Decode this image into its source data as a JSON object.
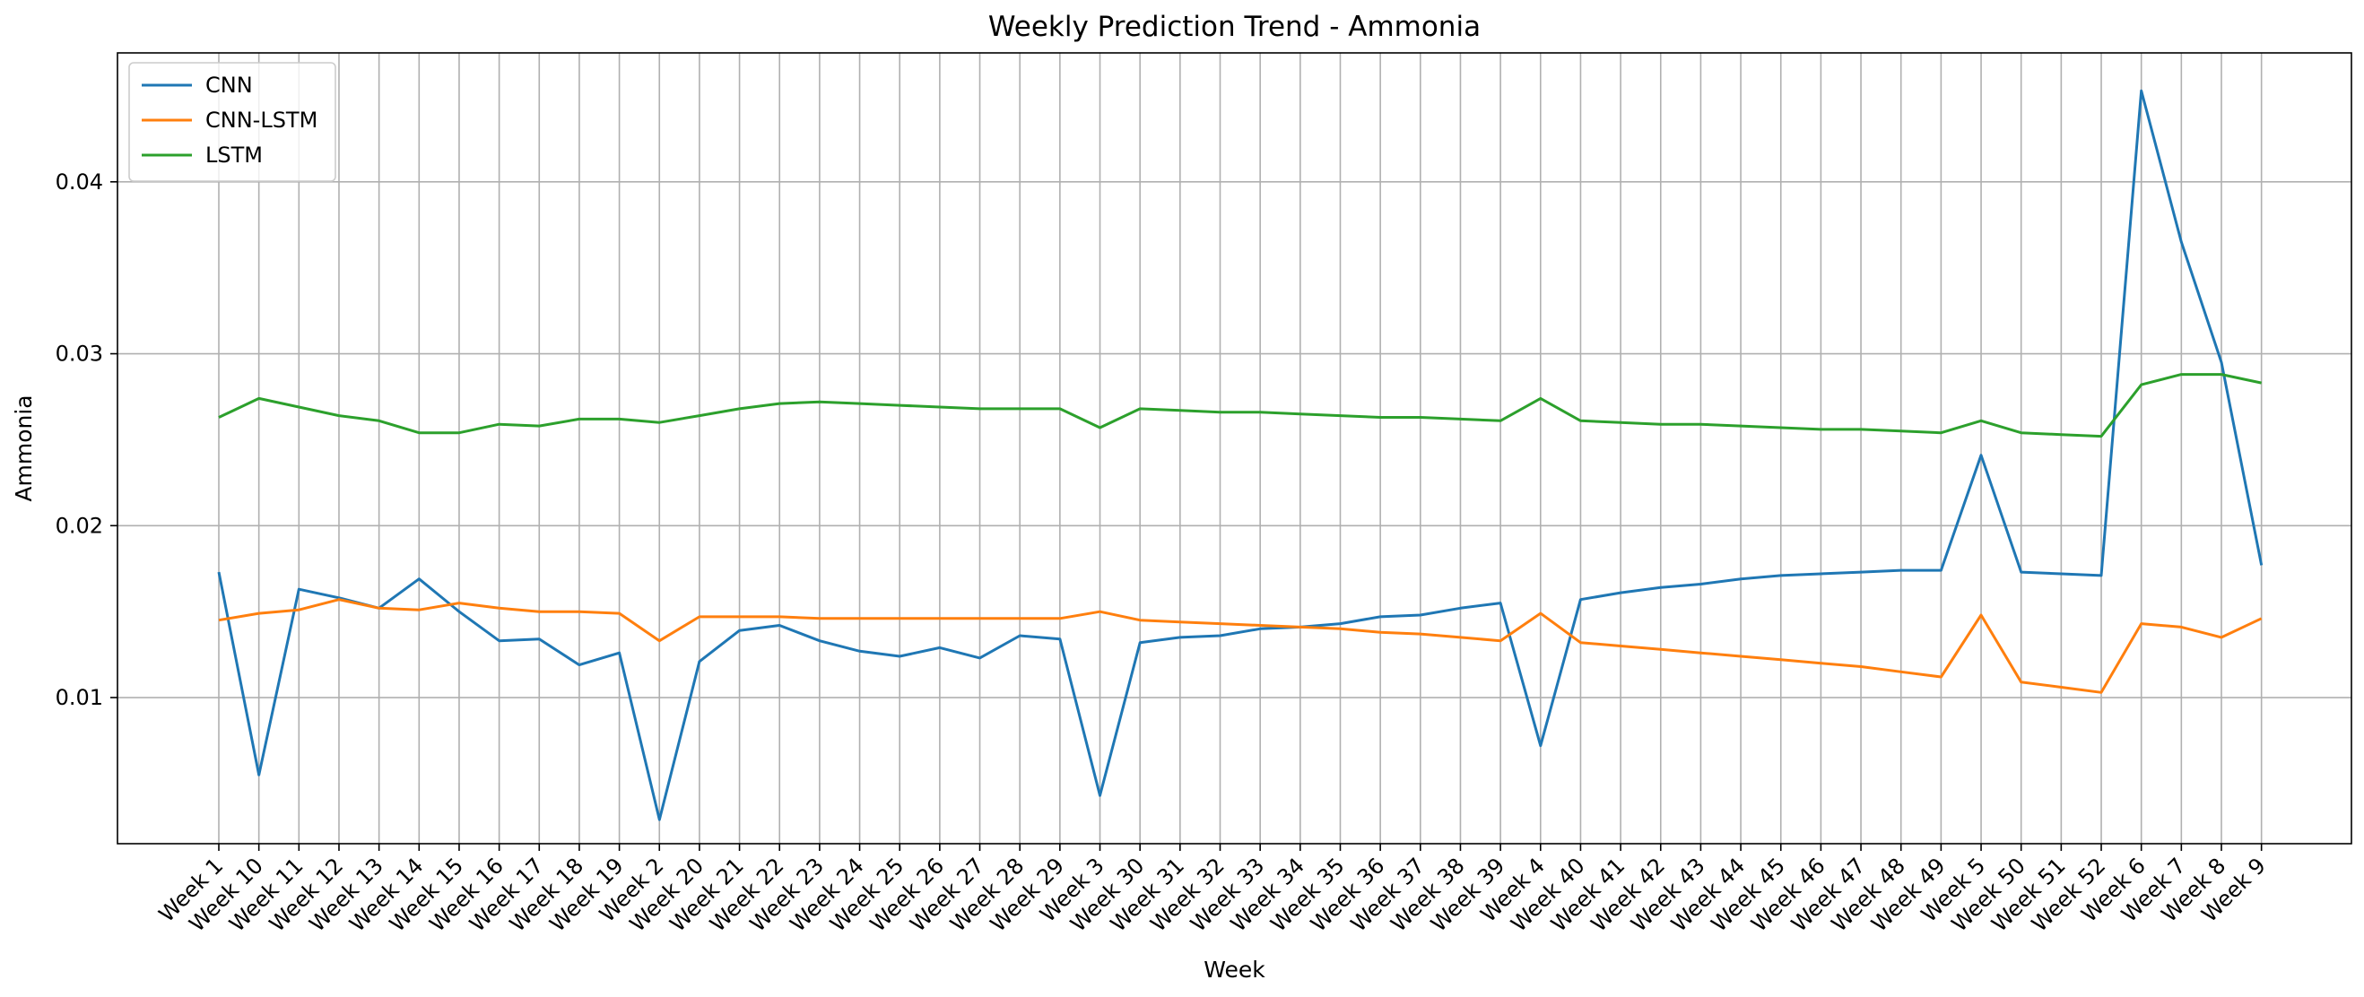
{
  "chart_data": {
    "type": "line",
    "title": "Weekly Prediction Trend - Ammonia",
    "xlabel": "Week",
    "ylabel": "Ammonia",
    "ylim": [
      0.0015,
      0.0475
    ],
    "yticks": [
      0.01,
      0.02,
      0.03,
      0.04
    ],
    "ytick_labels": [
      "0.01",
      "0.02",
      "0.03",
      "0.04"
    ],
    "grid": true,
    "legend": "top-left",
    "categories": [
      "Week 1",
      "Week 10",
      "Week 11",
      "Week 12",
      "Week 13",
      "Week 14",
      "Week 15",
      "Week 16",
      "Week 17",
      "Week 18",
      "Week 19",
      "Week 2",
      "Week 20",
      "Week 21",
      "Week 22",
      "Week 23",
      "Week 24",
      "Week 25",
      "Week 26",
      "Week 27",
      "Week 28",
      "Week 29",
      "Week 3",
      "Week 30",
      "Week 31",
      "Week 32",
      "Week 33",
      "Week 34",
      "Week 35",
      "Week 36",
      "Week 37",
      "Week 38",
      "Week 39",
      "Week 4",
      "Week 40",
      "Week 41",
      "Week 42",
      "Week 43",
      "Week 44",
      "Week 45",
      "Week 46",
      "Week 47",
      "Week 48",
      "Week 49",
      "Week 5",
      "Week 50",
      "Week 51",
      "Week 52",
      "Week 6",
      "Week 7",
      "Week 8",
      "Week 9"
    ],
    "series": [
      {
        "name": "CNN",
        "color": "#1f77b4",
        "values": [
          0.0173,
          0.0055,
          0.0163,
          0.0158,
          0.0152,
          0.0169,
          0.015,
          0.0133,
          0.0134,
          0.0119,
          0.0126,
          0.0029,
          0.0121,
          0.0139,
          0.0142,
          0.0133,
          0.0127,
          0.0124,
          0.0129,
          0.0123,
          0.0136,
          0.0134,
          0.0043,
          0.0132,
          0.0135,
          0.0136,
          0.014,
          0.0141,
          0.0143,
          0.0147,
          0.0148,
          0.0152,
          0.0155,
          0.0072,
          0.0157,
          0.0161,
          0.0164,
          0.0166,
          0.0169,
          0.0171,
          0.0172,
          0.0173,
          0.0174,
          0.0174,
          0.0241,
          0.0173,
          0.0172,
          0.0171,
          0.0453,
          0.0365,
          0.0295,
          0.0177
        ]
      },
      {
        "name": "CNN-LSTM",
        "color": "#ff7f0e",
        "values": [
          0.0145,
          0.0149,
          0.0151,
          0.0157,
          0.0152,
          0.0151,
          0.0155,
          0.0152,
          0.015,
          0.015,
          0.0149,
          0.0133,
          0.0147,
          0.0147,
          0.0147,
          0.0146,
          0.0146,
          0.0146,
          0.0146,
          0.0146,
          0.0146,
          0.0146,
          0.015,
          0.0145,
          0.0144,
          0.0143,
          0.0142,
          0.0141,
          0.014,
          0.0138,
          0.0137,
          0.0135,
          0.0133,
          0.0149,
          0.0132,
          0.013,
          0.0128,
          0.0126,
          0.0124,
          0.0122,
          0.012,
          0.0118,
          0.0115,
          0.0112,
          0.0148,
          0.0109,
          0.0106,
          0.0103,
          0.0143,
          0.0141,
          0.0135,
          0.0146
        ]
      },
      {
        "name": "LSTM",
        "color": "#2ca02c",
        "values": [
          0.0263,
          0.0274,
          0.0269,
          0.0264,
          0.0261,
          0.0254,
          0.0254,
          0.0259,
          0.0258,
          0.0262,
          0.0262,
          0.026,
          0.0264,
          0.0268,
          0.0271,
          0.0272,
          0.0271,
          0.027,
          0.0269,
          0.0268,
          0.0268,
          0.0268,
          0.0257,
          0.0268,
          0.0267,
          0.0266,
          0.0266,
          0.0265,
          0.0264,
          0.0263,
          0.0263,
          0.0262,
          0.0261,
          0.0274,
          0.0261,
          0.026,
          0.0259,
          0.0259,
          0.0258,
          0.0257,
          0.0256,
          0.0256,
          0.0255,
          0.0254,
          0.0261,
          0.0254,
          0.0253,
          0.0252,
          0.0282,
          0.0288,
          0.0288,
          0.0283
        ]
      }
    ]
  }
}
